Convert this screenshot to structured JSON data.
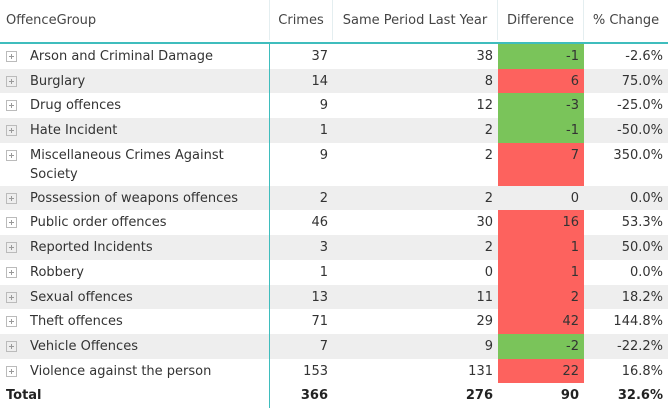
{
  "columns": [
    "OffenceGroup",
    "Crimes",
    "Same Period Last Year",
    "Difference",
    "% Change"
  ],
  "colors": {
    "increase": "#fd625e",
    "decrease": "#7ac45a",
    "accent": "#3fbdbd"
  },
  "rows": [
    {
      "group": "Arson and Criminal Damage",
      "crimes": "37",
      "last_year": "38",
      "difference": "-1",
      "change": "-2.6%"
    },
    {
      "group": "Burglary",
      "crimes": "14",
      "last_year": "8",
      "difference": "6",
      "change": "75.0%"
    },
    {
      "group": "Drug offences",
      "crimes": "9",
      "last_year": "12",
      "difference": "-3",
      "change": "-25.0%"
    },
    {
      "group": "Hate Incident",
      "crimes": "1",
      "last_year": "2",
      "difference": "-1",
      "change": "-50.0%"
    },
    {
      "group": "Miscellaneous Crimes Against Society",
      "crimes": "9",
      "last_year": "2",
      "difference": "7",
      "change": "350.0%"
    },
    {
      "group": "Possession of weapons offences",
      "crimes": "2",
      "last_year": "2",
      "difference": "0",
      "change": "0.0%"
    },
    {
      "group": "Public order offences",
      "crimes": "46",
      "last_year": "30",
      "difference": "16",
      "change": "53.3%"
    },
    {
      "group": "Reported Incidents",
      "crimes": "3",
      "last_year": "2",
      "difference": "1",
      "change": "50.0%"
    },
    {
      "group": "Robbery",
      "crimes": "1",
      "last_year": "0",
      "difference": "1",
      "change": "0.0%"
    },
    {
      "group": "Sexual offences",
      "crimes": "13",
      "last_year": "11",
      "difference": "2",
      "change": "18.2%"
    },
    {
      "group": "Theft offences",
      "crimes": "71",
      "last_year": "29",
      "difference": "42",
      "change": "144.8%"
    },
    {
      "group": "Vehicle Offences",
      "crimes": "7",
      "last_year": "9",
      "difference": "-2",
      "change": "-22.2%"
    },
    {
      "group": "Violence against the person",
      "crimes": "153",
      "last_year": "131",
      "difference": "22",
      "change": "16.8%"
    }
  ],
  "total": {
    "label": "Total",
    "crimes": "366",
    "last_year": "276",
    "difference": "90",
    "change": "32.6%"
  }
}
